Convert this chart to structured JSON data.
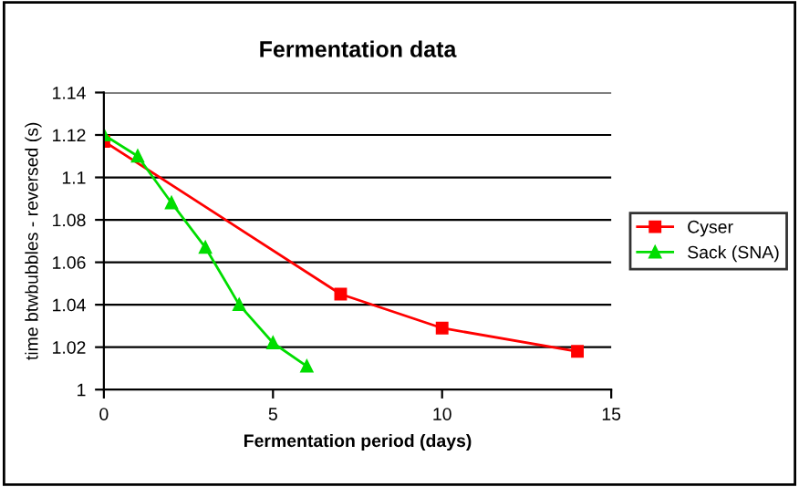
{
  "chart_data": {
    "type": "line",
    "title": "Fermentation data",
    "xlabel": "Fermentation period (days)",
    "ylabel": "time btwbubbles - reversed (s)",
    "series": [
      {
        "name": "Cyser",
        "color": "#ff0000",
        "x": [
          0,
          7,
          10,
          14
        ],
        "values": [
          1.117,
          1.045,
          1.029,
          1.018
        ],
        "marker": "square"
      },
      {
        "name": "Sack (SNA)",
        "color": "#00dd00",
        "x": [
          0,
          1,
          2,
          3,
          4,
          5,
          6
        ],
        "values": [
          1.12,
          1.11,
          1.088,
          1.067,
          1.04,
          1.022,
          1.011
        ],
        "marker": "triangle"
      }
    ],
    "xlim": [
      0,
      15
    ],
    "xticks": [
      0,
      5,
      10,
      15
    ],
    "ylim": [
      1,
      1.14
    ],
    "yticks": [
      1,
      1.02,
      1.04,
      1.06,
      1.08,
      1.1,
      1.12,
      1.14
    ],
    "grid": "y",
    "legend": "right",
    "line_style": "solid"
  }
}
